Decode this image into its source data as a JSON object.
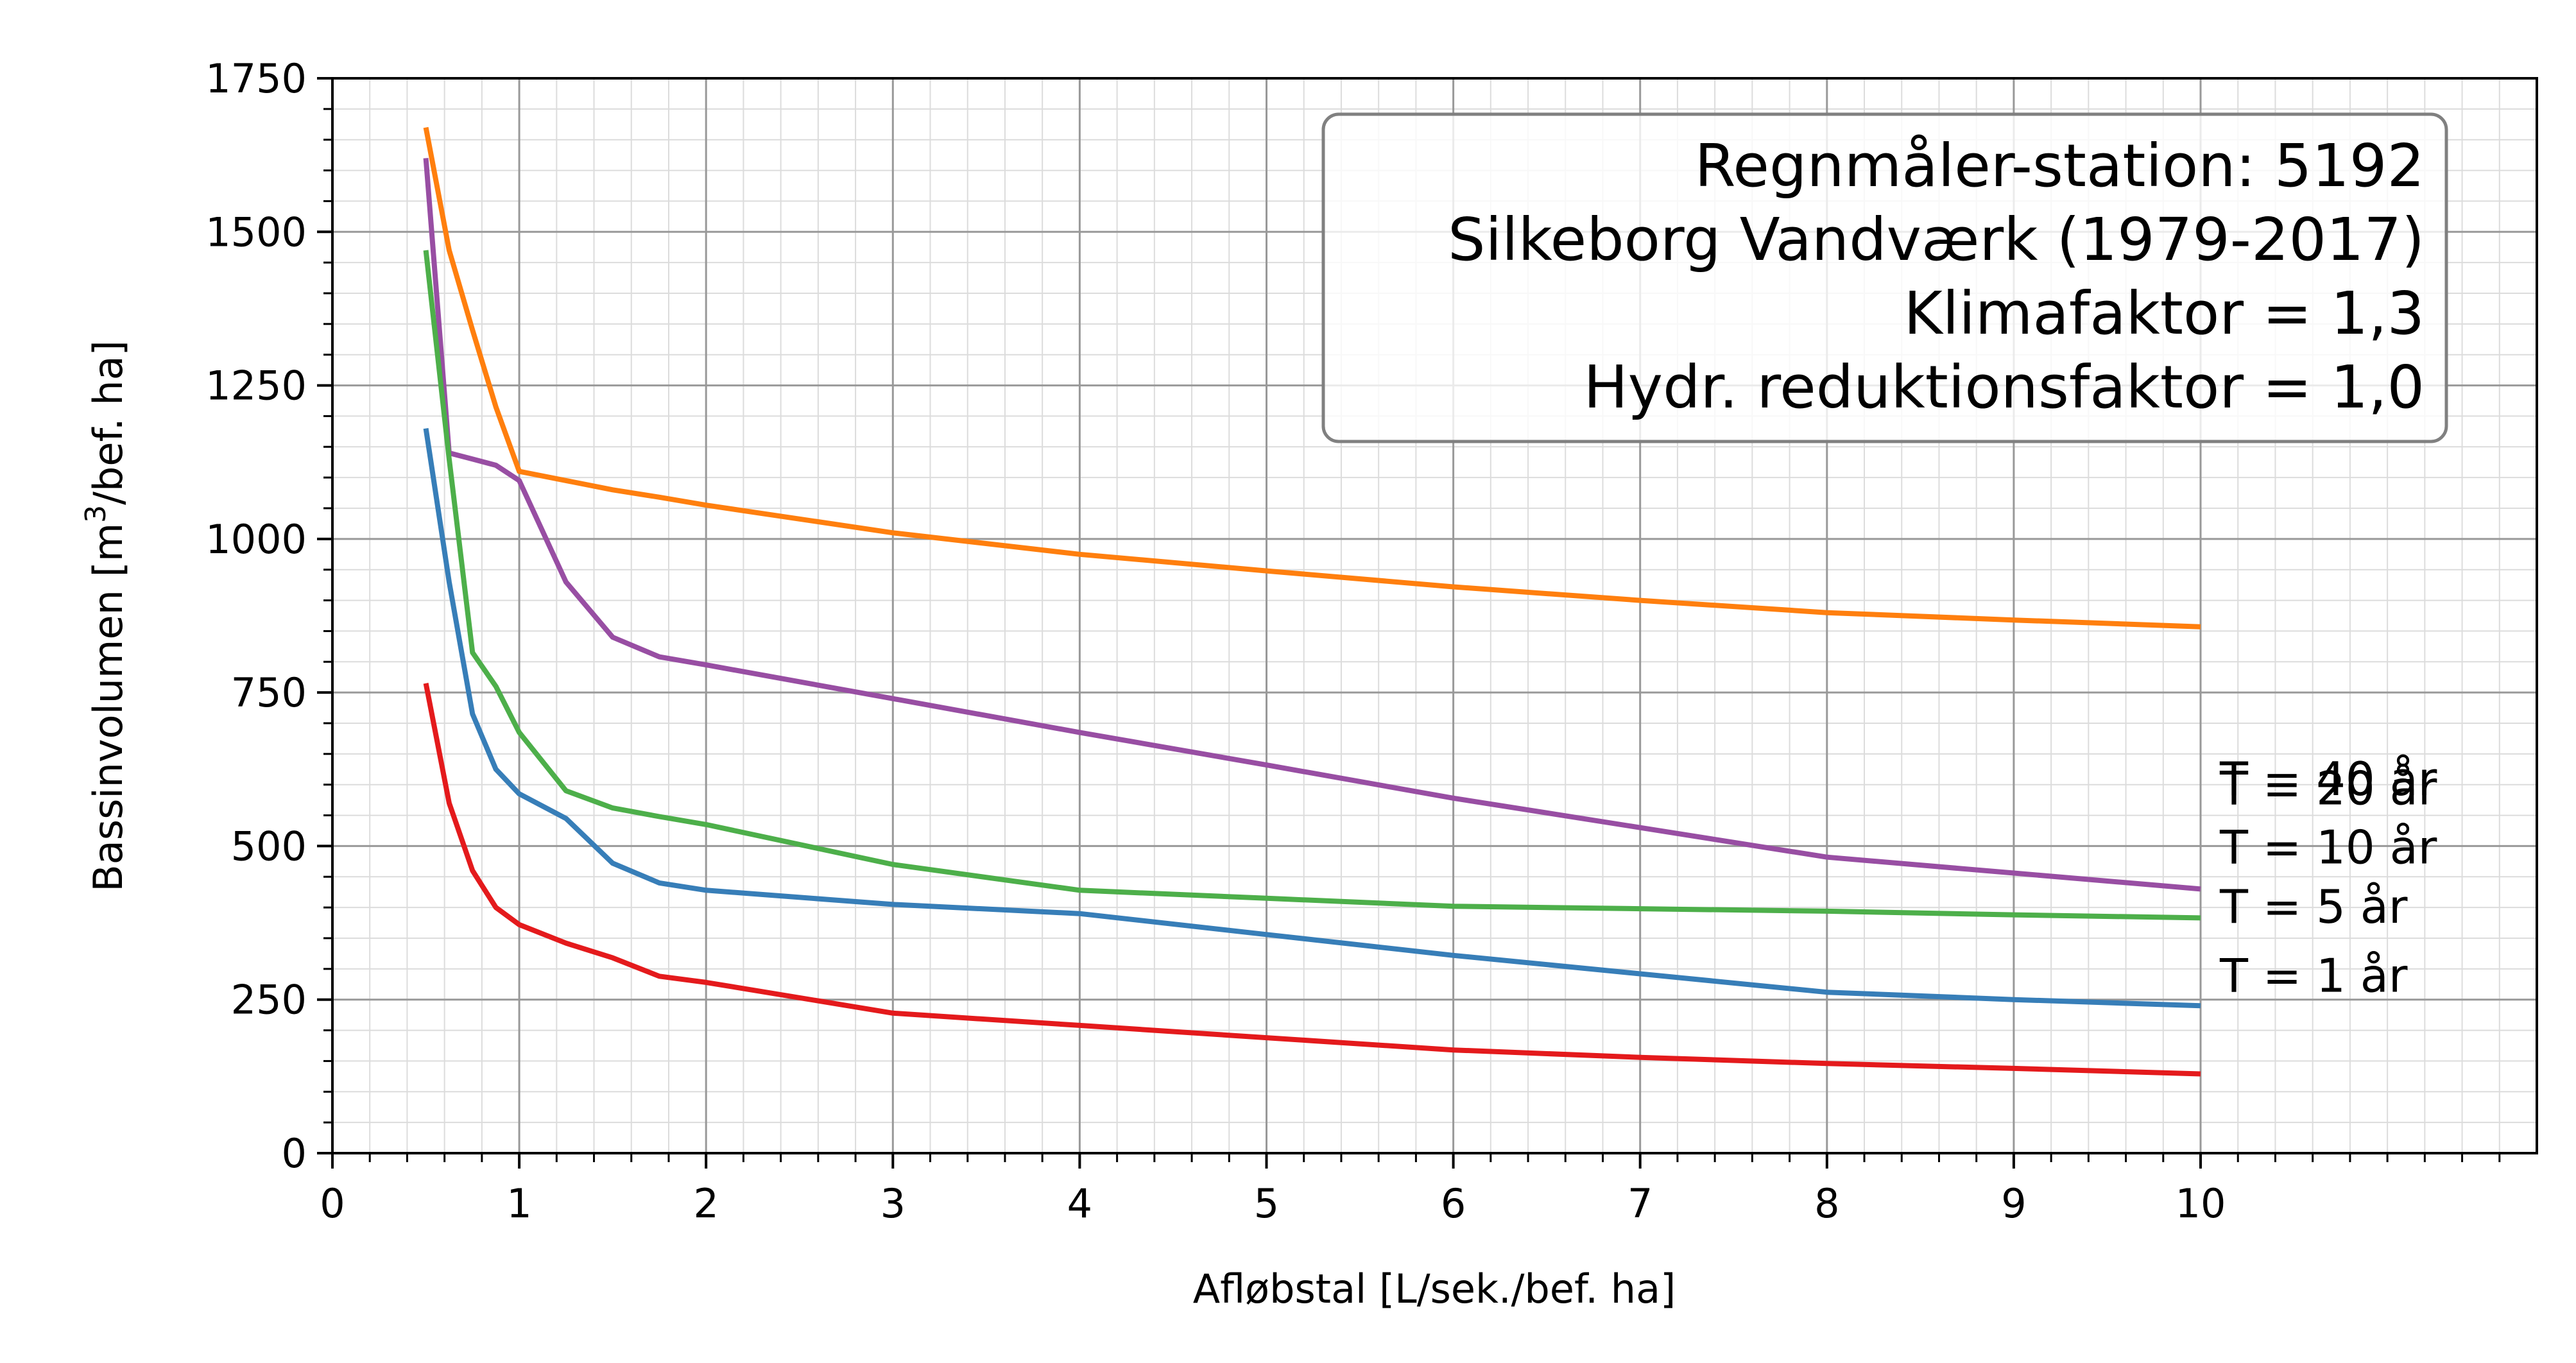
{
  "chart_data": {
    "type": "line",
    "xlabel": "Afløbstal [L/sek./bef. ha]",
    "ylabel_main": "Bassinvolumen [m",
    "ylabel_sup": "3",
    "ylabel_tail": "/bef. ha]",
    "xlim": [
      0,
      11.8
    ],
    "ylim": [
      0,
      1750
    ],
    "xticks": [
      "0",
      "1",
      "2",
      "3",
      "4",
      "5",
      "6",
      "7",
      "8",
      "9",
      "10"
    ],
    "yticks": [
      "0",
      "250",
      "500",
      "750",
      "1000",
      "1250",
      "1500",
      "1750"
    ],
    "grid": true,
    "info_box": {
      "lines": [
        "Regnmåler-station: 5192",
        "Silkeborg Vandværk (1979-2017)",
        "Klimafaktor = 1,3",
        "Hydr. reduktionsfaktor = 1,0"
      ],
      "placement": "top-right"
    },
    "series": [
      {
        "name": "T = 40 år",
        "color": "#ff7f0e",
        "x": [
          0.5,
          0.625,
          0.75,
          0.875,
          1.0,
          1.25,
          1.5,
          1.75,
          2,
          3,
          4,
          5,
          6,
          7,
          8,
          9,
          10
        ],
        "y": [
          1670,
          1470,
          1340,
          1215,
          1110,
          1095,
          1080,
          1068,
          1055,
          1010,
          975,
          948,
          922,
          900,
          880,
          868,
          857
        ]
      },
      {
        "name": "T = 20 år",
        "color": "#984ea3",
        "x": [
          0.5,
          0.625,
          0.75,
          0.875,
          1.0,
          1.25,
          1.5,
          1.75,
          2,
          3,
          4,
          5,
          6,
          7,
          8,
          9,
          10
        ],
        "y": [
          1620,
          1140,
          1130,
          1120,
          1095,
          930,
          840,
          808,
          795,
          740,
          685,
          632,
          578,
          530,
          482,
          456,
          430
        ]
      },
      {
        "name": "T = 10 år",
        "color": "#4daf4a",
        "x": [
          0.5,
          0.625,
          0.75,
          0.875,
          1.0,
          1.25,
          1.5,
          1.75,
          2,
          3,
          4,
          5,
          6,
          7,
          8,
          9,
          10
        ],
        "y": [
          1470,
          1130,
          815,
          760,
          685,
          590,
          562,
          548,
          535,
          470,
          428,
          415,
          402,
          398,
          394,
          388,
          383
        ]
      },
      {
        "name": "T = 5 år",
        "color": "#377eb8",
        "x": [
          0.5,
          0.625,
          0.75,
          0.875,
          1.0,
          1.25,
          1.5,
          1.75,
          2,
          3,
          4,
          5,
          6,
          7,
          8,
          9,
          10
        ],
        "y": [
          1180,
          930,
          715,
          625,
          585,
          545,
          472,
          440,
          428,
          405,
          390,
          356,
          322,
          292,
          262,
          250,
          240
        ]
      },
      {
        "name": "T = 1 år",
        "color": "#e41a1c",
        "x": [
          0.5,
          0.625,
          0.75,
          0.875,
          1.0,
          1.25,
          1.5,
          1.75,
          2,
          3,
          4,
          5,
          6,
          7,
          8,
          9,
          10
        ],
        "y": [
          765,
          570,
          460,
          400,
          372,
          342,
          318,
          288,
          278,
          228,
          208,
          188,
          168,
          156,
          146,
          138,
          129
        ]
      }
    ],
    "series_label_y": [
      1750,
      610,
      595,
      499,
      402,
      290
    ]
  }
}
